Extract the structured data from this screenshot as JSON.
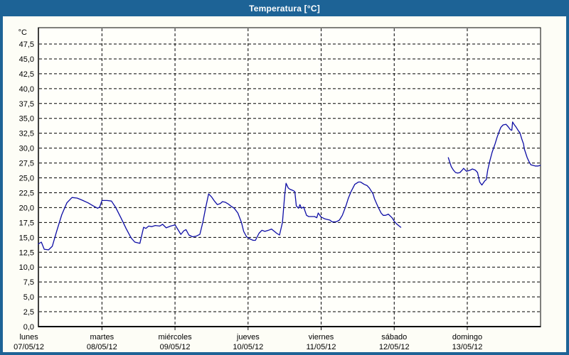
{
  "window": {
    "title": "Temperatura [°C]"
  },
  "colors": {
    "frame": "#1d6396",
    "title_text": "#ffffff",
    "panel_bg": "#fdfdf6",
    "plot_bg": "#fffffa",
    "grid": "#000000",
    "axis": "#000000",
    "text": "#000000",
    "line": "#0d0da5"
  },
  "chart_data": {
    "type": "line",
    "title": "Temperatura [°C]",
    "ylabel": "°C",
    "xlabel": "",
    "ylim": [
      0,
      50
    ],
    "grid": "dashed",
    "legend": "none",
    "y_ticks": [
      0,
      2.5,
      5,
      7.5,
      10,
      12.5,
      15,
      17.5,
      20,
      22.5,
      25,
      27.5,
      30,
      32.5,
      35,
      37.5,
      40,
      42.5,
      45,
      47.5
    ],
    "y_tick_labels": [
      "0,0",
      "2,5",
      "5,0",
      "7,5",
      "10,0",
      "12,5",
      "15,0",
      "17,5",
      "20,0",
      "22,5",
      "25,0",
      "27,5",
      "30,0",
      "32,5",
      "35,0",
      "37,5",
      "40,0",
      "42,5",
      "45,0",
      "47,5"
    ],
    "x_days": [
      {
        "day": "lunes",
        "date": "07/05/12"
      },
      {
        "day": "martes",
        "date": "08/05/12"
      },
      {
        "day": "miércoles",
        "date": "09/05/12"
      },
      {
        "day": "jueves",
        "date": "10/05/12"
      },
      {
        "day": "viernes",
        "date": "11/05/12"
      },
      {
        "day": "sábado",
        "date": "12/05/12"
      },
      {
        "day": "domingo",
        "date": "13/05/12"
      }
    ],
    "x_unit": "days since 07/05/12 00:00",
    "x_range_days": [
      0.13,
      7.0
    ],
    "series": [
      {
        "name": "Temperatura",
        "unit": "°C",
        "color": "#0d0da5",
        "segments": [
          [
            [
              0.13,
              13.9
            ],
            [
              0.17,
              14.2
            ],
            [
              0.21,
              13.0
            ],
            [
              0.27,
              12.9
            ],
            [
              0.32,
              13.5
            ],
            [
              0.38,
              16.0
            ],
            [
              0.45,
              18.8
            ],
            [
              0.52,
              20.8
            ],
            [
              0.59,
              21.7
            ],
            [
              0.66,
              21.6
            ],
            [
              0.72,
              21.3
            ],
            [
              0.81,
              20.8
            ],
            [
              0.88,
              20.3
            ],
            [
              0.94,
              19.9
            ],
            [
              0.97,
              20.1
            ],
            [
              1.0,
              21.2
            ],
            [
              1.07,
              21.2
            ],
            [
              1.13,
              21.1
            ],
            [
              1.19,
              20.0
            ],
            [
              1.26,
              18.3
            ],
            [
              1.33,
              16.5
            ],
            [
              1.4,
              14.9
            ],
            [
              1.45,
              14.2
            ],
            [
              1.52,
              14.0
            ],
            [
              1.57,
              16.7
            ],
            [
              1.6,
              16.5
            ],
            [
              1.64,
              16.9
            ],
            [
              1.68,
              16.8
            ],
            [
              1.73,
              17.0
            ],
            [
              1.79,
              16.9
            ],
            [
              1.83,
              17.2
            ],
            [
              1.88,
              16.6
            ],
            [
              1.94,
              16.9
            ],
            [
              2.0,
              17.1
            ],
            [
              2.04,
              16.3
            ],
            [
              2.08,
              15.5
            ],
            [
              2.12,
              16.1
            ],
            [
              2.15,
              16.3
            ],
            [
              2.19,
              15.4
            ],
            [
              2.24,
              15.1
            ],
            [
              2.29,
              15.2
            ],
            [
              2.34,
              15.5
            ],
            [
              2.38,
              17.5
            ],
            [
              2.42,
              20.0
            ],
            [
              2.46,
              22.3
            ],
            [
              2.5,
              21.8
            ],
            [
              2.54,
              21.1
            ],
            [
              2.58,
              20.5
            ],
            [
              2.62,
              20.7
            ],
            [
              2.65,
              21.0
            ],
            [
              2.69,
              20.9
            ],
            [
              2.73,
              20.6
            ],
            [
              2.76,
              20.3
            ],
            [
              2.81,
              19.9
            ],
            [
              2.86,
              19.1
            ],
            [
              2.91,
              17.5
            ],
            [
              2.94,
              16.0
            ],
            [
              2.98,
              15.1
            ],
            [
              3.03,
              14.7
            ],
            [
              3.07,
              14.5
            ],
            [
              3.1,
              14.5
            ],
            [
              3.15,
              15.7
            ],
            [
              3.19,
              16.2
            ],
            [
              3.23,
              16.0
            ],
            [
              3.28,
              16.2
            ],
            [
              3.32,
              16.4
            ],
            [
              3.36,
              16.0
            ],
            [
              3.39,
              15.7
            ],
            [
              3.43,
              15.4
            ],
            [
              3.47,
              17.5
            ],
            [
              3.5,
              22.0
            ],
            [
              3.52,
              24.1
            ],
            [
              3.55,
              23.3
            ],
            [
              3.57,
              23.1
            ],
            [
              3.61,
              22.9
            ],
            [
              3.64,
              22.7
            ],
            [
              3.66,
              20.3
            ],
            [
              3.69,
              19.9
            ],
            [
              3.71,
              20.5
            ],
            [
              3.73,
              19.9
            ],
            [
              3.76,
              20.1
            ],
            [
              3.8,
              18.7
            ],
            [
              3.83,
              18.5
            ],
            [
              3.87,
              18.5
            ],
            [
              3.91,
              18.5
            ],
            [
              3.94,
              18.3
            ],
            [
              3.96,
              19.1
            ],
            [
              4.0,
              18.4
            ],
            [
              4.02,
              18.3
            ],
            [
              4.05,
              18.1
            ],
            [
              4.12,
              17.9
            ],
            [
              4.15,
              17.6
            ],
            [
              4.2,
              17.6
            ],
            [
              4.22,
              17.7
            ],
            [
              4.25,
              17.9
            ],
            [
              4.29,
              18.7
            ],
            [
              4.34,
              20.3
            ],
            [
              4.37,
              21.5
            ],
            [
              4.41,
              22.7
            ],
            [
              4.46,
              23.9
            ],
            [
              4.51,
              24.3
            ],
            [
              4.54,
              24.3
            ],
            [
              4.59,
              23.9
            ],
            [
              4.63,
              23.7
            ],
            [
              4.66,
              23.3
            ],
            [
              4.71,
              22.3
            ],
            [
              4.73,
              21.5
            ],
            [
              4.78,
              20.1
            ],
            [
              4.82,
              19.1
            ],
            [
              4.85,
              18.7
            ],
            [
              4.88,
              18.7
            ],
            [
              4.9,
              18.8
            ],
            [
              4.92,
              18.9
            ],
            [
              4.97,
              18.3
            ],
            [
              5.0,
              17.7
            ],
            [
              5.03,
              17.3
            ],
            [
              5.06,
              17.0
            ],
            [
              5.09,
              16.7
            ]
          ],
          [
            [
              5.74,
              28.4
            ],
            [
              5.78,
              26.9
            ],
            [
              5.81,
              26.3
            ],
            [
              5.84,
              25.9
            ],
            [
              5.87,
              25.8
            ],
            [
              5.9,
              25.9
            ],
            [
              5.93,
              26.3
            ],
            [
              5.95,
              26.6
            ],
            [
              5.99,
              26.1
            ],
            [
              6.04,
              26.3
            ],
            [
              6.07,
              26.5
            ],
            [
              6.11,
              26.3
            ],
            [
              6.14,
              25.9
            ],
            [
              6.17,
              24.3
            ],
            [
              6.2,
              23.8
            ],
            [
              6.24,
              24.5
            ],
            [
              6.26,
              24.7
            ],
            [
              6.28,
              26.3
            ],
            [
              6.31,
              27.9
            ],
            [
              6.34,
              29.3
            ],
            [
              6.38,
              30.7
            ],
            [
              6.41,
              31.9
            ],
            [
              6.44,
              32.9
            ],
            [
              6.46,
              33.5
            ],
            [
              6.49,
              33.9
            ],
            [
              6.53,
              34.0
            ],
            [
              6.56,
              33.6
            ],
            [
              6.59,
              33.1
            ],
            [
              6.61,
              33.0
            ],
            [
              6.62,
              34.4
            ],
            [
              6.64,
              34.0
            ],
            [
              6.67,
              33.5
            ],
            [
              6.7,
              32.9
            ],
            [
              6.72,
              32.6
            ],
            [
              6.75,
              31.4
            ],
            [
              6.77,
              30.7
            ],
            [
              6.78,
              29.9
            ],
            [
              6.82,
              28.4
            ],
            [
              6.85,
              27.6
            ],
            [
              6.87,
              27.2
            ],
            [
              6.9,
              27.1
            ],
            [
              6.93,
              27.0
            ],
            [
              6.97,
              27.0
            ],
            [
              7.0,
              27.1
            ]
          ]
        ]
      }
    ]
  }
}
